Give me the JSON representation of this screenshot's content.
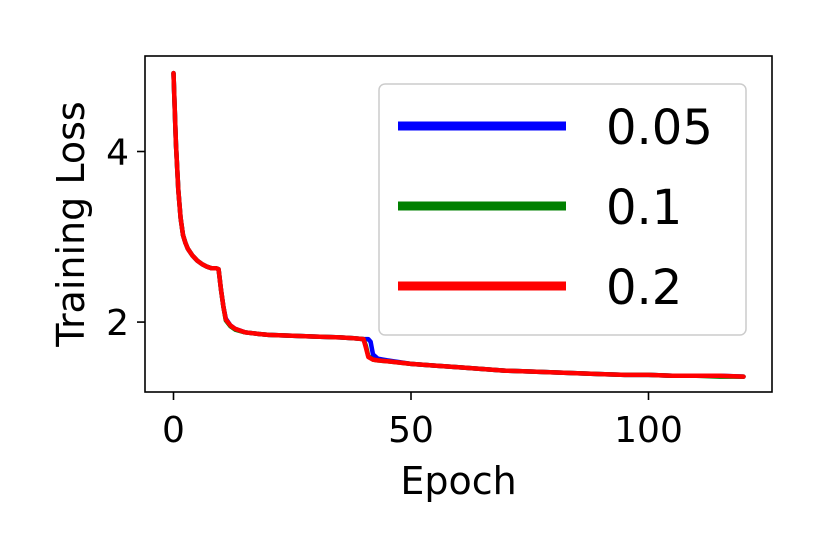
{
  "chart_data": {
    "type": "line",
    "xlabel": "Epoch",
    "ylabel": "Training Loss",
    "xlim": [
      -6,
      126
    ],
    "ylim": [
      1.18,
      5.12
    ],
    "xticks": [
      0,
      50,
      100
    ],
    "yticks": [
      2,
      4
    ],
    "grid": false,
    "legend_position": "top-right",
    "series": [
      {
        "name": "0.05",
        "color": "#0000ff",
        "x": [
          0,
          0.5,
          1,
          1.5,
          2,
          2.5,
          3,
          4,
          5,
          6,
          7,
          8,
          9,
          9.5,
          10,
          10.5,
          11,
          12,
          13,
          15,
          18,
          20,
          25,
          30,
          35,
          38,
          40,
          41,
          41.5,
          42,
          43,
          45,
          50,
          55,
          60,
          65,
          70,
          75,
          80,
          85,
          90,
          95,
          100,
          105,
          110,
          115,
          120
        ],
        "y": [
          4.92,
          4.1,
          3.55,
          3.22,
          3.02,
          2.93,
          2.86,
          2.78,
          2.72,
          2.68,
          2.65,
          2.63,
          2.63,
          2.62,
          2.38,
          2.18,
          2.04,
          1.96,
          1.92,
          1.88,
          1.86,
          1.85,
          1.84,
          1.83,
          1.82,
          1.81,
          1.8,
          1.8,
          1.77,
          1.62,
          1.57,
          1.55,
          1.51,
          1.49,
          1.47,
          1.45,
          1.43,
          1.42,
          1.41,
          1.4,
          1.39,
          1.38,
          1.38,
          1.37,
          1.37,
          1.37,
          1.36
        ]
      },
      {
        "name": "0.1",
        "color": "#008000",
        "x": [
          0,
          0.5,
          1,
          1.5,
          2,
          2.5,
          3,
          4,
          5,
          6,
          7,
          8,
          9,
          9.5,
          10,
          10.5,
          11,
          12,
          13,
          15,
          18,
          20,
          25,
          30,
          35,
          38,
          40,
          40.5,
          41,
          42,
          43,
          45,
          50,
          55,
          60,
          65,
          70,
          75,
          80,
          85,
          90,
          95,
          100,
          105,
          110,
          115,
          120
        ],
        "y": [
          4.92,
          4.1,
          3.55,
          3.22,
          3.02,
          2.93,
          2.86,
          2.78,
          2.72,
          2.68,
          2.65,
          2.63,
          2.63,
          2.62,
          2.38,
          2.18,
          2.02,
          1.95,
          1.91,
          1.88,
          1.86,
          1.85,
          1.84,
          1.83,
          1.82,
          1.81,
          1.8,
          1.72,
          1.6,
          1.56,
          1.55,
          1.54,
          1.51,
          1.49,
          1.47,
          1.45,
          1.43,
          1.42,
          1.41,
          1.4,
          1.39,
          1.38,
          1.38,
          1.37,
          1.37,
          1.36,
          1.36
        ]
      },
      {
        "name": "0.2",
        "color": "#ff0000",
        "x": [
          0,
          0.5,
          1,
          1.5,
          2,
          2.5,
          3,
          4,
          5,
          6,
          7,
          8,
          9,
          9.5,
          10,
          10.5,
          11,
          12,
          13,
          15,
          18,
          20,
          25,
          30,
          35,
          38,
          40,
          40.5,
          41,
          42,
          43,
          45,
          50,
          55,
          60,
          65,
          70,
          75,
          80,
          85,
          90,
          95,
          100,
          105,
          110,
          115,
          120
        ],
        "y": [
          4.92,
          4.1,
          3.55,
          3.22,
          3.02,
          2.93,
          2.86,
          2.78,
          2.72,
          2.68,
          2.65,
          2.63,
          2.63,
          2.62,
          2.38,
          2.18,
          2.03,
          1.96,
          1.92,
          1.88,
          1.86,
          1.85,
          1.84,
          1.83,
          1.82,
          1.81,
          1.8,
          1.7,
          1.59,
          1.56,
          1.55,
          1.54,
          1.51,
          1.49,
          1.47,
          1.45,
          1.43,
          1.42,
          1.41,
          1.4,
          1.39,
          1.38,
          1.38,
          1.37,
          1.37,
          1.37,
          1.36
        ]
      }
    ]
  }
}
